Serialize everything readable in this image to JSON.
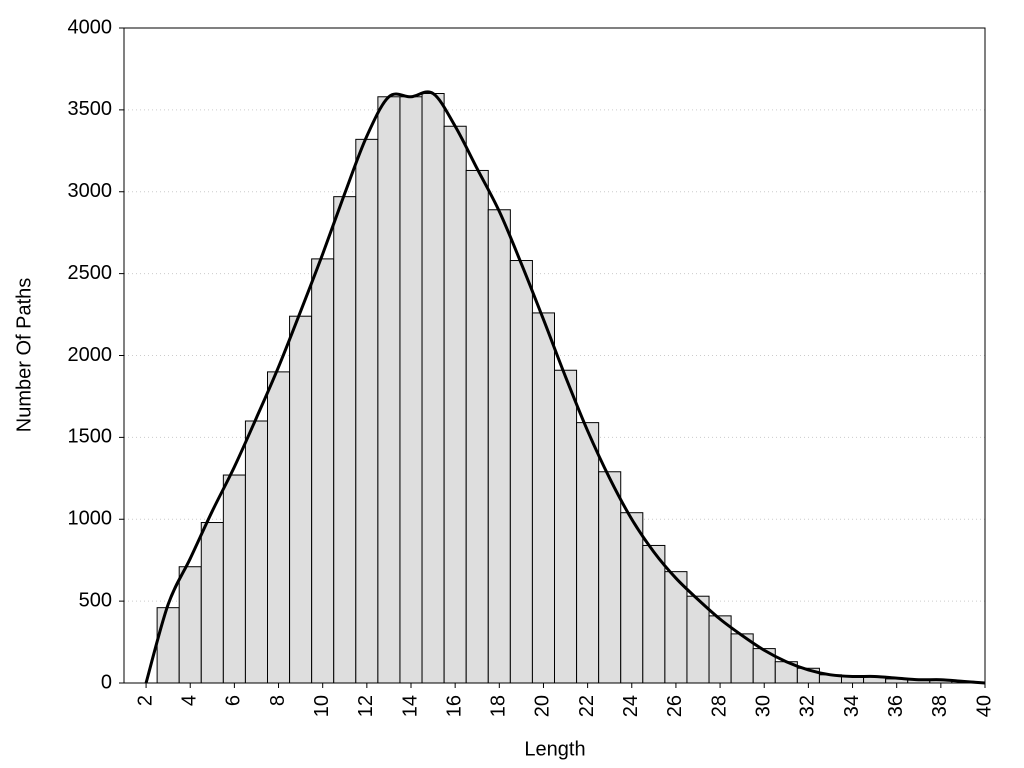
{
  "chart_data": {
    "type": "histogram",
    "xlabel": "Length",
    "ylabel": "Number Of Paths",
    "bins": [
      2.5,
      3.5,
      4.5,
      5.5,
      6.5,
      7.5,
      8.5,
      9.5,
      10.5,
      11.5,
      12.5,
      13.5,
      14.5,
      15.5,
      16.5,
      17.5,
      18.5,
      19.5,
      20.5,
      21.5,
      22.5,
      23.5,
      24.5,
      25.5,
      26.5,
      27.5,
      28.5,
      29.5,
      30.5,
      31.5,
      32.5,
      33.5,
      34.5,
      35.5,
      36.5,
      37.5,
      38.5,
      39.5
    ],
    "values": [
      460,
      710,
      980,
      1270,
      1600,
      1900,
      2240,
      2590,
      2970,
      3320,
      3580,
      3580,
      3600,
      3400,
      3130,
      2890,
      2580,
      2260,
      1910,
      1590,
      1290,
      1040,
      840,
      680,
      530,
      410,
      300,
      210,
      130,
      90,
      50,
      40,
      40,
      25,
      20,
      15,
      10
    ],
    "color": "#dedede",
    "line": {
      "color": "#000000",
      "x": [
        2,
        3,
        4,
        5,
        6,
        7,
        8,
        9,
        10,
        11,
        12,
        13,
        14,
        15,
        16,
        17,
        18,
        19,
        20,
        21,
        22,
        23,
        24,
        25,
        26,
        27,
        28,
        29,
        30,
        31,
        32,
        33,
        34,
        35,
        36,
        37,
        38,
        39,
        40
      ],
      "values": [
        0,
        480,
        760,
        1050,
        1320,
        1620,
        1930,
        2270,
        2620,
        2990,
        3340,
        3580,
        3580,
        3600,
        3400,
        3140,
        2880,
        2560,
        2220,
        1870,
        1540,
        1250,
        1000,
        800,
        640,
        510,
        390,
        290,
        200,
        130,
        80,
        50,
        40,
        40,
        30,
        20,
        20,
        10,
        0
      ]
    },
    "xlim": [
      1,
      40
    ],
    "ylim": [
      0,
      4000
    ],
    "xticks": [
      2,
      4,
      6,
      8,
      10,
      12,
      14,
      16,
      18,
      20,
      22,
      24,
      26,
      28,
      30,
      32,
      34,
      36,
      38,
      40
    ],
    "yticks": [
      0,
      500,
      1000,
      1500,
      2000,
      2500,
      3000,
      3500,
      4000
    ],
    "grid": true
  }
}
